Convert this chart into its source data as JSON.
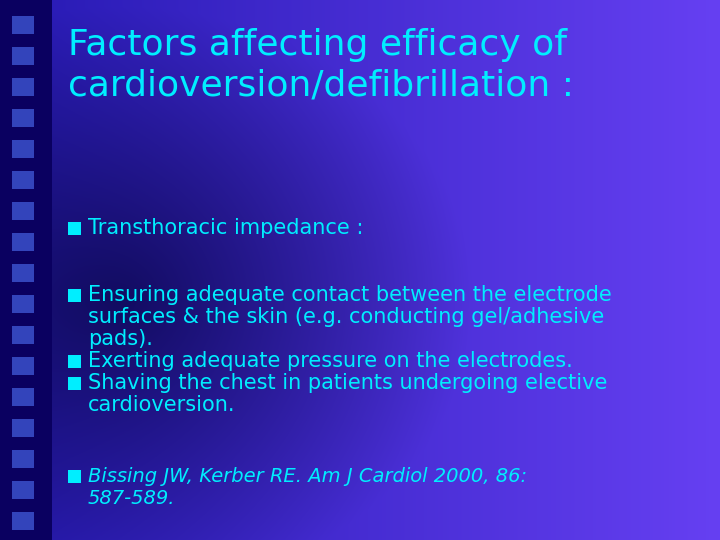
{
  "title_line1": "Factors affecting efficacy of",
  "title_line2": "cardioversion/defibrillation :",
  "title_color": "#00EEFF",
  "bullet_color": "#00EEFF",
  "bullet_sq_color": "#00CCFF",
  "bullet1": "Transthoracic impedance :",
  "bullet2_line1": "Ensuring adequate contact between the electrode",
  "bullet2_line2": "surfaces & the skin (e.g. conducting gel/adhesive",
  "bullet2_line3": "pads).",
  "bullet3": "Exerting adequate pressure on the electrodes.",
  "bullet4_line1": "Shaving the chest in patients undergoing elective",
  "bullet4_line2": "cardioversion.",
  "ref_line1": "Bissing JW, Kerber RE. Am J Cardiol 2000, 86:",
  "ref_line2": "587-589.",
  "title_fontsize": 26,
  "bullet_fontsize": 15,
  "ref_fontsize": 14,
  "fig_width": 7.2,
  "fig_height": 5.4,
  "dpi": 100
}
